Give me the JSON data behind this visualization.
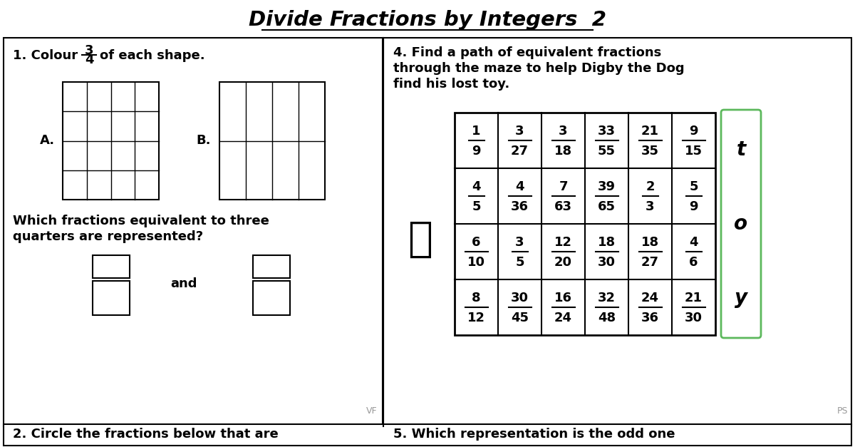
{
  "title": "Divide Fractions by Integers  2",
  "bg_color": "#ffffff",
  "border_color": "#000000",
  "title_fontsize": 21,
  "q4_text_lines": [
    "4. Find a path of equivalent fractions",
    "through the maze to help Digby the Dog",
    "find his lost toy."
  ],
  "maze_fractions": [
    [
      "1/9",
      "3/27",
      "3/18",
      "33/55",
      "21/35",
      "9/15"
    ],
    [
      "4/5",
      "4/36",
      "7/63",
      "39/65",
      "2/3",
      "5/9"
    ],
    [
      "6/10",
      "3/5",
      "12/20",
      "18/30",
      "18/27",
      "4/6"
    ],
    [
      "8/12",
      "30/45",
      "16/24",
      "32/48",
      "24/36",
      "21/30"
    ]
  ],
  "toy_letters": [
    "t",
    "o",
    "y"
  ],
  "vf_text": "VF",
  "ps_text": "PS",
  "toy_box_color": "#5cb85c",
  "label_A": "A.",
  "label_B": "B.",
  "q1_num": "3",
  "q1_den": "4",
  "bottom_left": "2. Circle the fractions below that are",
  "bottom_right": "5. Which representation is the odd one"
}
